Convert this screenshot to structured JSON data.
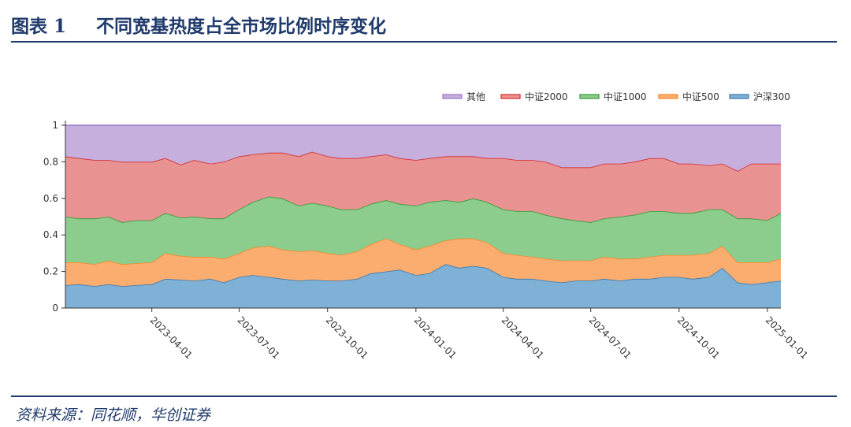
{
  "header": {
    "prefix": "图表 1",
    "title": "不同宽基热度占全市场比例时序变化"
  },
  "footer": {
    "source": "资料来源：同花顺，华创证券"
  },
  "chart_data": {
    "type": "area",
    "stacked": true,
    "title": "",
    "xlabel": "",
    "ylabel": "",
    "ylim": [
      0,
      1
    ],
    "yticks": [
      "0",
      "0.2",
      "0.4",
      "0.6",
      "0.8",
      "1"
    ],
    "x_start": "2023-01-01",
    "x_end": "2025-01-15",
    "x_ticks": [
      "2023-04-01",
      "2023-07-01",
      "2023-10-01",
      "2024-01-01",
      "2024-04-01",
      "2024-07-01",
      "2024-10-01",
      "2025-01-01"
    ],
    "legend_position": "top-right",
    "x": [
      "2023-01-01",
      "2023-01-15",
      "2023-02-01",
      "2023-02-15",
      "2023-03-01",
      "2023-03-15",
      "2023-04-01",
      "2023-04-15",
      "2023-05-01",
      "2023-05-15",
      "2023-06-01",
      "2023-06-15",
      "2023-07-01",
      "2023-07-15",
      "2023-08-01",
      "2023-08-15",
      "2023-09-01",
      "2023-09-15",
      "2023-10-01",
      "2023-10-15",
      "2023-11-01",
      "2023-11-15",
      "2023-12-01",
      "2023-12-15",
      "2024-01-01",
      "2024-01-15",
      "2024-02-01",
      "2024-02-15",
      "2024-03-01",
      "2024-03-15",
      "2024-04-01",
      "2024-04-15",
      "2024-05-01",
      "2024-05-15",
      "2024-06-01",
      "2024-06-15",
      "2024-07-01",
      "2024-07-15",
      "2024-08-01",
      "2024-08-15",
      "2024-09-01",
      "2024-09-15",
      "2024-10-01",
      "2024-10-15",
      "2024-11-01",
      "2024-11-15",
      "2024-12-01",
      "2024-12-15",
      "2025-01-01",
      "2025-01-15"
    ],
    "series": [
      {
        "name": "沪深300",
        "color": "#7fb1d6",
        "line": "#3a78b0",
        "values": [
          0.125,
          0.13,
          0.12,
          0.13,
          0.12,
          0.125,
          0.13,
          0.16,
          0.155,
          0.15,
          0.16,
          0.14,
          0.17,
          0.18,
          0.17,
          0.16,
          0.15,
          0.155,
          0.15,
          0.15,
          0.16,
          0.19,
          0.2,
          0.21,
          0.18,
          0.19,
          0.24,
          0.22,
          0.23,
          0.22,
          0.17,
          0.16,
          0.16,
          0.15,
          0.14,
          0.15,
          0.15,
          0.16,
          0.15,
          0.16,
          0.16,
          0.17,
          0.17,
          0.16,
          0.17,
          0.22,
          0.14,
          0.13,
          0.14,
          0.15
        ]
      },
      {
        "name": "中证500",
        "color": "#fbad6f",
        "line": "#f5892c",
        "values": [
          0.125,
          0.12,
          0.12,
          0.13,
          0.12,
          0.12,
          0.12,
          0.14,
          0.13,
          0.13,
          0.12,
          0.13,
          0.13,
          0.15,
          0.17,
          0.16,
          0.16,
          0.16,
          0.15,
          0.14,
          0.15,
          0.16,
          0.18,
          0.14,
          0.14,
          0.15,
          0.13,
          0.16,
          0.15,
          0.14,
          0.13,
          0.13,
          0.12,
          0.12,
          0.12,
          0.11,
          0.11,
          0.12,
          0.12,
          0.11,
          0.12,
          0.12,
          0.12,
          0.13,
          0.13,
          0.12,
          0.11,
          0.12,
          0.11,
          0.12
        ]
      },
      {
        "name": "中证1000",
        "color": "#8ccc8c",
        "line": "#2f9b34",
        "values": [
          0.25,
          0.24,
          0.25,
          0.24,
          0.23,
          0.235,
          0.23,
          0.22,
          0.21,
          0.22,
          0.21,
          0.22,
          0.24,
          0.25,
          0.27,
          0.28,
          0.25,
          0.26,
          0.26,
          0.25,
          0.23,
          0.22,
          0.21,
          0.22,
          0.24,
          0.24,
          0.22,
          0.2,
          0.22,
          0.22,
          0.24,
          0.24,
          0.25,
          0.24,
          0.23,
          0.22,
          0.21,
          0.21,
          0.23,
          0.24,
          0.25,
          0.24,
          0.23,
          0.23,
          0.24,
          0.2,
          0.24,
          0.24,
          0.23,
          0.25
        ]
      },
      {
        "name": "中证2000",
        "color": "#e99292",
        "line": "#d52a2a",
        "values": [
          0.33,
          0.33,
          0.32,
          0.31,
          0.33,
          0.32,
          0.32,
          0.3,
          0.29,
          0.31,
          0.3,
          0.31,
          0.29,
          0.26,
          0.24,
          0.25,
          0.27,
          0.28,
          0.27,
          0.28,
          0.28,
          0.26,
          0.25,
          0.25,
          0.25,
          0.24,
          0.24,
          0.25,
          0.23,
          0.24,
          0.28,
          0.28,
          0.28,
          0.29,
          0.28,
          0.29,
          0.3,
          0.3,
          0.29,
          0.29,
          0.29,
          0.29,
          0.27,
          0.27,
          0.24,
          0.25,
          0.26,
          0.3,
          0.31,
          0.27
        ]
      },
      {
        "name": "其他",
        "color": "#c6aedd",
        "line": "#9a75c3",
        "values": [
          0.17,
          0.18,
          0.19,
          0.19,
          0.2,
          0.2,
          0.2,
          0.18,
          0.21,
          0.19,
          0.2,
          0.2,
          0.17,
          0.16,
          0.15,
          0.15,
          0.17,
          0.145,
          0.17,
          0.18,
          0.18,
          0.17,
          0.16,
          0.18,
          0.19,
          0.18,
          0.17,
          0.17,
          0.17,
          0.18,
          0.18,
          0.19,
          0.19,
          0.2,
          0.23,
          0.23,
          0.23,
          0.21,
          0.21,
          0.2,
          0.18,
          0.18,
          0.21,
          0.21,
          0.22,
          0.21,
          0.25,
          0.21,
          0.21,
          0.21
        ]
      }
    ]
  }
}
